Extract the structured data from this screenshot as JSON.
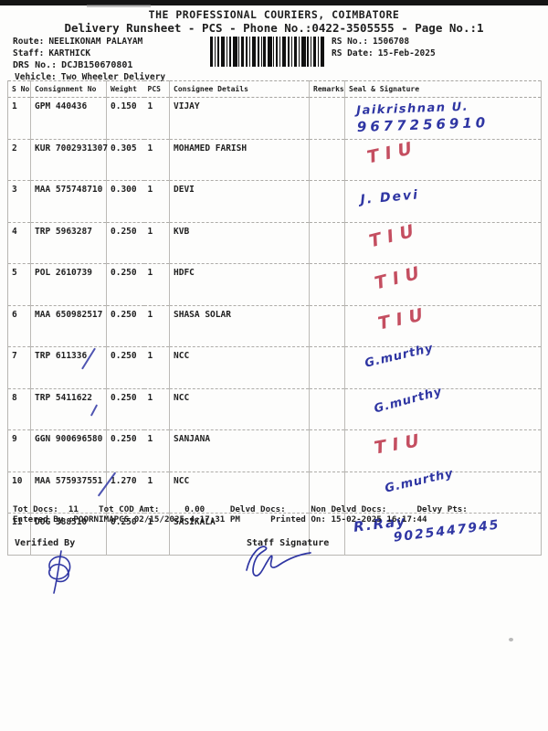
{
  "header": {
    "company": "THE PROFESSIONAL COURIERS, COIMBATORE",
    "runsheet_line": "Delivery Runsheet - PCS - Phone No.:0422-3505555 - Page No.:1",
    "route_label": "Route:",
    "route": "NEELIKONAM PALAYAM",
    "staff_label": "Staff:",
    "staff": "KARTHICK",
    "drs_label": "DRS No.:",
    "drs_no": "DCJB150670801",
    "vehicle_label": "Vehicle:",
    "vehicle": "Two Wheeler Delivery",
    "rs_no_label": "RS No.:",
    "rs_no": "1506708",
    "rs_date_label": "RS Date:",
    "rs_date": "15-Feb-2025",
    "barcode_icon": "barcode"
  },
  "table": {
    "columns": [
      "S No",
      "Consignment No",
      "Weight",
      "PCS",
      "Consignee Details",
      "Remarks",
      "Seal & Signature"
    ],
    "rows": [
      {
        "s_no": "1",
        "consignment_no": "GPM 440436",
        "weight": "0.150",
        "pcs": "1",
        "consignee": "VIJAY",
        "remarks": "",
        "signature": {
          "ink": "blue",
          "lines": [
            "Jaikrishnan U.",
            "9677256910"
          ]
        }
      },
      {
        "s_no": "2",
        "consignment_no": "KUR 7002931307",
        "weight": "0.305",
        "pcs": "1",
        "consignee": "MOHAMED FARISH",
        "remarks": "",
        "signature": {
          "ink": "red",
          "lines": [
            "TIU"
          ]
        }
      },
      {
        "s_no": "3",
        "consignment_no": "MAA 575748710",
        "weight": "0.300",
        "pcs": "1",
        "consignee": "DEVI",
        "remarks": "",
        "signature": {
          "ink": "blue",
          "lines": [
            "J. Devi"
          ]
        }
      },
      {
        "s_no": "4",
        "consignment_no": "TRP 5963287",
        "weight": "0.250",
        "pcs": "1",
        "consignee": "KVB",
        "remarks": "",
        "signature": {
          "ink": "red",
          "lines": [
            "TIU"
          ]
        }
      },
      {
        "s_no": "5",
        "consignment_no": "POL 2610739",
        "weight": "0.250",
        "pcs": "1",
        "consignee": "HDFC",
        "remarks": "",
        "signature": {
          "ink": "red",
          "lines": [
            "TIU"
          ]
        }
      },
      {
        "s_no": "6",
        "consignment_no": "MAA 650982517",
        "weight": "0.250",
        "pcs": "1",
        "consignee": "SHASA SOLAR",
        "remarks": "",
        "signature": {
          "ink": "red",
          "lines": [
            "TIU"
          ]
        }
      },
      {
        "s_no": "7",
        "consignment_no": "TRP 611336",
        "weight": "0.250",
        "pcs": "1",
        "consignee": "NCC",
        "remarks": "",
        "signature": {
          "ink": "blue",
          "lines": [
            "G.murthy"
          ]
        },
        "pen_mark": true
      },
      {
        "s_no": "8",
        "consignment_no": "TRP 5411622",
        "weight": "0.250",
        "pcs": "1",
        "consignee": "NCC",
        "remarks": "",
        "signature": {
          "ink": "blue",
          "lines": [
            "G.murthy"
          ]
        },
        "pen_mark": true
      },
      {
        "s_no": "9",
        "consignment_no": "GGN 900696580",
        "weight": "0.250",
        "pcs": "1",
        "consignee": "SANJANA",
        "remarks": "",
        "signature": {
          "ink": "red",
          "lines": [
            "TIU"
          ]
        }
      },
      {
        "s_no": "10",
        "consignment_no": "MAA 575937551",
        "weight": "1.270",
        "pcs": "1",
        "consignee": "NCC",
        "remarks": "",
        "signature": {
          "ink": "blue",
          "lines": [
            "G.murthy"
          ]
        },
        "pen_mark": true
      },
      {
        "s_no": "11",
        "consignment_no": "DOG 388510",
        "weight": "0.250",
        "pcs": "1",
        "consignee": "SASIKALA",
        "remarks": "",
        "signature": {
          "ink": "blue",
          "lines": [
            "R.Ray",
            "9025447945"
          ]
        }
      }
    ]
  },
  "summary": {
    "totals_line": "Tot Docs:  11    Tot COD Amt:     0.00     Delvd Docs:     Non Delvd Docs:      Delvy Pts:",
    "entered_line": "Entered By :POORNIMAPCS 02/15/2025 4:17:31 PM      Printed On: 15-02-2025 16:17:44"
  },
  "footer": {
    "verified_by_label": "Verified By",
    "staff_signature_label": "Staff Signature"
  },
  "ink_colors": {
    "blue": "#2f36a3",
    "red": "#c44e60"
  }
}
